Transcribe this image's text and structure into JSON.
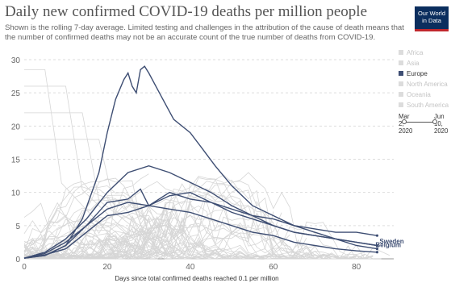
{
  "title": "Daily new confirmed COVID-19 deaths per million people",
  "subtitle": "Shown is the rolling 7-day average. Limited testing and challenges in the attribution of the cause of death means that the number of confirmed deaths may not be an accurate count of the true number of deaths from COVID-19.",
  "logo": {
    "line1": "Our World",
    "line2": "in Data"
  },
  "legend": [
    {
      "label": "Africa",
      "active": false
    },
    {
      "label": "Asia",
      "active": false
    },
    {
      "label": "Europe",
      "active": true
    },
    {
      "label": "North America",
      "active": false
    },
    {
      "label": "Oceania",
      "active": false
    },
    {
      "label": "South America",
      "active": false
    }
  ],
  "timeline": {
    "start": "Mar 2, 2020",
    "start_a": "Mar",
    "start_b": "2,",
    "start_c": "2020",
    "end_a": "Jun",
    "end_b": "10,",
    "end_c": "2020"
  },
  "colors": {
    "highlight": "#3e4e73",
    "background_lines": "#d6d6d6",
    "grid": "#dddddd"
  },
  "chart_data": {
    "type": "line",
    "xlabel": "Days since total confirmed deaths reached 0.1 per million",
    "ylabel": "",
    "xlim": [
      0,
      89
    ],
    "ylim": [
      0,
      30
    ],
    "xticks": [
      0,
      20,
      40,
      60,
      80
    ],
    "yticks": [
      0,
      5,
      10,
      15,
      20,
      25,
      30
    ],
    "grid": true,
    "series": [
      {
        "name": "Sweden",
        "label_on_chart": true,
        "x": [
          0,
          5,
          10,
          15,
          20,
          25,
          28,
          30,
          35,
          40,
          45,
          50,
          55,
          60,
          65,
          70,
          75,
          80,
          85
        ],
        "y": [
          0.1,
          0.5,
          2,
          5,
          8.5,
          9,
          10.5,
          8,
          10,
          9,
          8.5,
          7.5,
          6.5,
          6,
          5,
          4.5,
          4,
          4,
          3.5
        ]
      },
      {
        "name": "Belgium",
        "label_on_chart": true,
        "x": [
          0,
          5,
          10,
          14,
          18,
          20,
          22,
          24,
          25,
          26,
          27,
          28,
          29,
          30,
          33,
          36,
          40,
          43,
          46,
          50,
          55,
          60,
          65,
          70,
          75,
          80,
          85
        ],
        "y": [
          0.1,
          0.5,
          2,
          6,
          13,
          19,
          24,
          27,
          28,
          26,
          25,
          28.5,
          29,
          28,
          24.5,
          21,
          19,
          16.5,
          14,
          11,
          8,
          6.5,
          5,
          4,
          3,
          2,
          1.5
        ]
      },
      {
        "name": "",
        "x": [
          0,
          5,
          10,
          15,
          20,
          25,
          30,
          35,
          40,
          45,
          50,
          55,
          60,
          65,
          70,
          75,
          80,
          85
        ],
        "y": [
          0.1,
          1,
          3,
          6,
          10,
          13,
          14,
          13,
          11.5,
          10,
          8,
          6.5,
          5,
          4,
          3.5,
          3,
          2.5,
          2
        ]
      },
      {
        "name": "",
        "x": [
          0,
          5,
          10,
          15,
          20,
          25,
          30,
          35,
          40,
          45,
          50,
          55,
          60,
          65,
          70,
          75,
          80,
          85
        ],
        "y": [
          0.1,
          0.8,
          2.5,
          5,
          7.5,
          8.5,
          8,
          7.5,
          7,
          6,
          5,
          4,
          3.5,
          2.5,
          2,
          1.5,
          1.2,
          1
        ]
      },
      {
        "name": "",
        "x": [
          0,
          5,
          10,
          15,
          20,
          25,
          30,
          35,
          40,
          45,
          50,
          55,
          60,
          65,
          70,
          75,
          80,
          85
        ],
        "y": [
          0.1,
          0.6,
          1.5,
          4,
          6.5,
          7,
          8,
          9.5,
          10,
          8.5,
          7,
          6,
          5,
          4,
          3.5,
          3,
          2.5,
          2
        ]
      }
    ]
  },
  "bottom_labels": {
    "sweden": "Sweden",
    "belgium": "Belgium"
  }
}
